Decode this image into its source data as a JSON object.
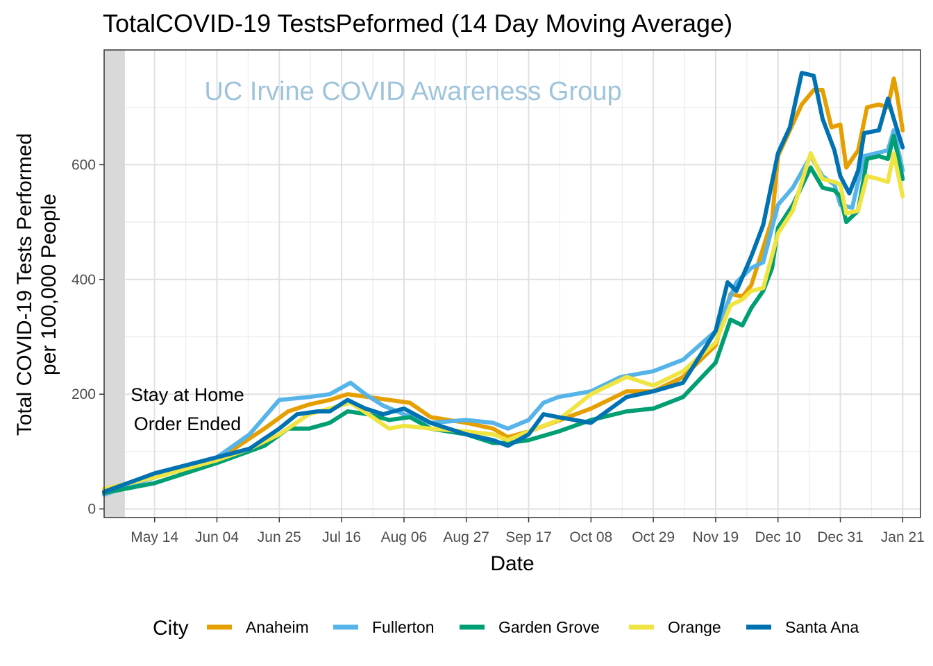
{
  "chart_data": {
    "type": "line",
    "title": "TotalCOVID-19  TestsPeformed (14 Day Moving Average)",
    "xlabel": "Date",
    "ylabel_lines": [
      "Total COVID-19 Tests Performed",
      "per 100,000 People"
    ],
    "x_range": [
      "2020-04-27",
      "2021-01-27"
    ],
    "ylim": [
      -15,
      800
    ],
    "x_ticks": [
      {
        "date": "2020-05-14",
        "label": "May 14"
      },
      {
        "date": "2020-06-04",
        "label": "Jun 04"
      },
      {
        "date": "2020-06-25",
        "label": "Jun 25"
      },
      {
        "date": "2020-07-16",
        "label": "Jul 16"
      },
      {
        "date": "2020-08-06",
        "label": "Aug 06"
      },
      {
        "date": "2020-08-27",
        "label": "Aug 27"
      },
      {
        "date": "2020-09-17",
        "label": "Sep 17"
      },
      {
        "date": "2020-10-08",
        "label": "Oct 08"
      },
      {
        "date": "2020-10-29",
        "label": "Oct 29"
      },
      {
        "date": "2020-11-19",
        "label": "Nov 19"
      },
      {
        "date": "2020-12-10",
        "label": "Dec 10"
      },
      {
        "date": "2020-12-31",
        "label": "Dec 31"
      },
      {
        "date": "2021-01-21",
        "label": "Jan 21"
      }
    ],
    "y_ticks": [
      0,
      200,
      400,
      600
    ],
    "grid": true,
    "legend_position": "bottom",
    "legend_title": "City",
    "shaded_region": {
      "start": "2020-04-27",
      "end": "2020-05-04"
    },
    "annotation_lines": [
      "Stay at Home",
      "Order Ended"
    ],
    "watermark": "UC Irvine COVID Awareness Group",
    "series": [
      {
        "name": "Anaheim",
        "color": "#E69F00",
        "points": [
          [
            "2020-04-27",
            30
          ],
          [
            "2020-05-14",
            58
          ],
          [
            "2020-06-04",
            85
          ],
          [
            "2020-06-20",
            140
          ],
          [
            "2020-06-28",
            170
          ],
          [
            "2020-07-05",
            182
          ],
          [
            "2020-07-12",
            190
          ],
          [
            "2020-07-18",
            200
          ],
          [
            "2020-07-25",
            195
          ],
          [
            "2020-08-01",
            190
          ],
          [
            "2020-08-08",
            185
          ],
          [
            "2020-08-15",
            160
          ],
          [
            "2020-08-27",
            150
          ],
          [
            "2020-09-05",
            140
          ],
          [
            "2020-09-10",
            125
          ],
          [
            "2020-09-17",
            135
          ],
          [
            "2020-09-25",
            150
          ],
          [
            "2020-10-08",
            175
          ],
          [
            "2020-10-20",
            205
          ],
          [
            "2020-10-29",
            205
          ],
          [
            "2020-11-08",
            230
          ],
          [
            "2020-11-19",
            285
          ],
          [
            "2020-11-24",
            375
          ],
          [
            "2020-11-28",
            370
          ],
          [
            "2020-12-01",
            390
          ],
          [
            "2020-12-05",
            455
          ],
          [
            "2020-12-08",
            505
          ],
          [
            "2020-12-10",
            615
          ],
          [
            "2020-12-14",
            660
          ],
          [
            "2020-12-18",
            705
          ],
          [
            "2020-12-22",
            730
          ],
          [
            "2020-12-25",
            730
          ],
          [
            "2020-12-28",
            665
          ],
          [
            "2020-12-31",
            670
          ],
          [
            "2021-01-02",
            595
          ],
          [
            "2021-01-06",
            625
          ],
          [
            "2021-01-09",
            700
          ],
          [
            "2021-01-13",
            705
          ],
          [
            "2021-01-16",
            700
          ],
          [
            "2021-01-18",
            750
          ],
          [
            "2021-01-19",
            725
          ],
          [
            "2021-01-21",
            660
          ]
        ]
      },
      {
        "name": "Fullerton",
        "color": "#56B4E9",
        "points": [
          [
            "2020-04-27",
            25
          ],
          [
            "2020-05-14",
            55
          ],
          [
            "2020-06-04",
            90
          ],
          [
            "2020-06-15",
            130
          ],
          [
            "2020-06-25",
            190
          ],
          [
            "2020-07-05",
            195
          ],
          [
            "2020-07-12",
            200
          ],
          [
            "2020-07-19",
            220
          ],
          [
            "2020-07-24",
            200
          ],
          [
            "2020-07-30",
            180
          ],
          [
            "2020-08-06",
            165
          ],
          [
            "2020-08-15",
            150
          ],
          [
            "2020-08-27",
            155
          ],
          [
            "2020-09-05",
            150
          ],
          [
            "2020-09-10",
            140
          ],
          [
            "2020-09-17",
            155
          ],
          [
            "2020-09-22",
            185
          ],
          [
            "2020-09-27",
            195
          ],
          [
            "2020-10-08",
            205
          ],
          [
            "2020-10-18",
            230
          ],
          [
            "2020-10-29",
            240
          ],
          [
            "2020-11-08",
            260
          ],
          [
            "2020-11-19",
            310
          ],
          [
            "2020-11-26",
            395
          ],
          [
            "2020-12-01",
            420
          ],
          [
            "2020-12-05",
            430
          ],
          [
            "2020-12-10",
            530
          ],
          [
            "2020-12-15",
            560
          ],
          [
            "2020-12-21",
            615
          ],
          [
            "2020-12-25",
            580
          ],
          [
            "2020-12-29",
            565
          ],
          [
            "2020-12-31",
            530
          ],
          [
            "2021-01-04",
            525
          ],
          [
            "2021-01-08",
            615
          ],
          [
            "2021-01-12",
            620
          ],
          [
            "2021-01-16",
            625
          ],
          [
            "2021-01-18",
            660
          ],
          [
            "2021-01-21",
            590
          ]
        ]
      },
      {
        "name": "Garden Grove",
        "color": "#009E73",
        "points": [
          [
            "2020-04-27",
            28
          ],
          [
            "2020-05-14",
            45
          ],
          [
            "2020-06-04",
            80
          ],
          [
            "2020-06-20",
            110
          ],
          [
            "2020-06-28",
            140
          ],
          [
            "2020-07-05",
            140
          ],
          [
            "2020-07-12",
            150
          ],
          [
            "2020-07-18",
            170
          ],
          [
            "2020-07-25",
            165
          ],
          [
            "2020-08-01",
            155
          ],
          [
            "2020-08-08",
            160
          ],
          [
            "2020-08-15",
            140
          ],
          [
            "2020-08-27",
            130
          ],
          [
            "2020-09-05",
            115
          ],
          [
            "2020-09-10",
            115
          ],
          [
            "2020-09-17",
            120
          ],
          [
            "2020-09-27",
            135
          ],
          [
            "2020-10-08",
            155
          ],
          [
            "2020-10-20",
            170
          ],
          [
            "2020-10-29",
            175
          ],
          [
            "2020-11-08",
            195
          ],
          [
            "2020-11-19",
            255
          ],
          [
            "2020-11-24",
            330
          ],
          [
            "2020-11-28",
            320
          ],
          [
            "2020-12-01",
            350
          ],
          [
            "2020-12-05",
            380
          ],
          [
            "2020-12-08",
            420
          ],
          [
            "2020-12-10",
            490
          ],
          [
            "2020-12-15",
            530
          ],
          [
            "2020-12-21",
            595
          ],
          [
            "2020-12-25",
            560
          ],
          [
            "2020-12-29",
            555
          ],
          [
            "2020-12-31",
            545
          ],
          [
            "2021-01-02",
            500
          ],
          [
            "2021-01-06",
            520
          ],
          [
            "2021-01-09",
            610
          ],
          [
            "2021-01-13",
            615
          ],
          [
            "2021-01-16",
            610
          ],
          [
            "2021-01-18",
            650
          ],
          [
            "2021-01-21",
            575
          ]
        ]
      },
      {
        "name": "Orange",
        "color": "#F0E442",
        "points": [
          [
            "2020-04-27",
            35
          ],
          [
            "2020-05-14",
            55
          ],
          [
            "2020-06-04",
            85
          ],
          [
            "2020-06-15",
            105
          ],
          [
            "2020-06-25",
            130
          ],
          [
            "2020-07-05",
            165
          ],
          [
            "2020-07-12",
            175
          ],
          [
            "2020-07-19",
            185
          ],
          [
            "2020-07-25",
            165
          ],
          [
            "2020-08-01",
            140
          ],
          [
            "2020-08-06",
            145
          ],
          [
            "2020-08-15",
            140
          ],
          [
            "2020-08-27",
            135
          ],
          [
            "2020-09-05",
            130
          ],
          [
            "2020-09-10",
            120
          ],
          [
            "2020-09-17",
            135
          ],
          [
            "2020-09-27",
            155
          ],
          [
            "2020-10-08",
            200
          ],
          [
            "2020-10-20",
            230
          ],
          [
            "2020-10-29",
            215
          ],
          [
            "2020-11-08",
            240
          ],
          [
            "2020-11-19",
            290
          ],
          [
            "2020-11-24",
            355
          ],
          [
            "2020-11-28",
            365
          ],
          [
            "2020-12-01",
            380
          ],
          [
            "2020-12-05",
            385
          ],
          [
            "2020-12-10",
            480
          ],
          [
            "2020-12-15",
            520
          ],
          [
            "2020-12-21",
            620
          ],
          [
            "2020-12-25",
            575
          ],
          [
            "2020-12-29",
            570
          ],
          [
            "2020-12-31",
            565
          ],
          [
            "2021-01-02",
            515
          ],
          [
            "2021-01-06",
            520
          ],
          [
            "2021-01-09",
            580
          ],
          [
            "2021-01-13",
            575
          ],
          [
            "2021-01-16",
            570
          ],
          [
            "2021-01-18",
            620
          ],
          [
            "2021-01-21",
            545
          ]
        ]
      },
      {
        "name": "Santa Ana",
        "color": "#0072B2",
        "points": [
          [
            "2020-04-27",
            30
          ],
          [
            "2020-05-14",
            62
          ],
          [
            "2020-06-04",
            90
          ],
          [
            "2020-06-15",
            105
          ],
          [
            "2020-06-25",
            140
          ],
          [
            "2020-07-01",
            165
          ],
          [
            "2020-07-08",
            170
          ],
          [
            "2020-07-12",
            170
          ],
          [
            "2020-07-18",
            190
          ],
          [
            "2020-07-24",
            175
          ],
          [
            "2020-07-30",
            165
          ],
          [
            "2020-08-06",
            175
          ],
          [
            "2020-08-15",
            150
          ],
          [
            "2020-08-27",
            130
          ],
          [
            "2020-09-05",
            120
          ],
          [
            "2020-09-10",
            110
          ],
          [
            "2020-09-17",
            130
          ],
          [
            "2020-09-22",
            165
          ],
          [
            "2020-09-27",
            160
          ],
          [
            "2020-10-08",
            150
          ],
          [
            "2020-10-20",
            195
          ],
          [
            "2020-10-29",
            205
          ],
          [
            "2020-11-08",
            220
          ],
          [
            "2020-11-19",
            310
          ],
          [
            "2020-11-23",
            395
          ],
          [
            "2020-11-26",
            380
          ],
          [
            "2020-12-01",
            440
          ],
          [
            "2020-12-05",
            495
          ],
          [
            "2020-12-10",
            620
          ],
          [
            "2020-12-14",
            665
          ],
          [
            "2020-12-18",
            760
          ],
          [
            "2020-12-22",
            755
          ],
          [
            "2020-12-25",
            680
          ],
          [
            "2020-12-29",
            625
          ],
          [
            "2020-12-31",
            580
          ],
          [
            "2021-01-03",
            550
          ],
          [
            "2021-01-06",
            590
          ],
          [
            "2021-01-08",
            655
          ],
          [
            "2021-01-13",
            660
          ],
          [
            "2021-01-16",
            715
          ],
          [
            "2021-01-18",
            680
          ],
          [
            "2021-01-21",
            630
          ]
        ]
      }
    ]
  }
}
